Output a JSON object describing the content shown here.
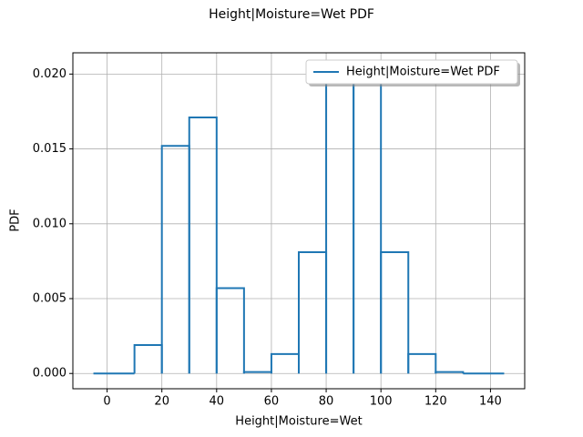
{
  "chart_data": {
    "type": "histogram",
    "title": "Height|Moisture=Wet PDF",
    "x_label": "Height|Moisture=Wet",
    "y_label": "PDF",
    "bins": [
      -5,
      10,
      20,
      30,
      40,
      50,
      60,
      70,
      80,
      90,
      100,
      110,
      120,
      130,
      145
    ],
    "series": [
      {
        "name": "Height|Moisture=Wet PDF",
        "color": "#1f77b4",
        "values": [
          0,
          0.0019,
          0.0152,
          0.0171,
          0.0057,
          0.0001,
          0.0013,
          0.0081,
          0.0204,
          0.0204,
          0.0081,
          0.0013,
          0.0001,
          0
        ]
      }
    ],
    "xlim": [
      -12.5,
      152.5
    ],
    "ylim": [
      -0.00102,
      0.02142
    ],
    "xticks": [
      0,
      20,
      40,
      60,
      80,
      100,
      120,
      140
    ],
    "yticks": [
      {
        "value": 0,
        "label": "0.000"
      },
      {
        "value": 0.005,
        "label": "0.005"
      },
      {
        "value": 0.01,
        "label": "0.010"
      },
      {
        "value": 0.015,
        "label": "0.015"
      },
      {
        "value": 0.02,
        "label": "0.020"
      }
    ],
    "grid": true,
    "legend": "upper right"
  }
}
